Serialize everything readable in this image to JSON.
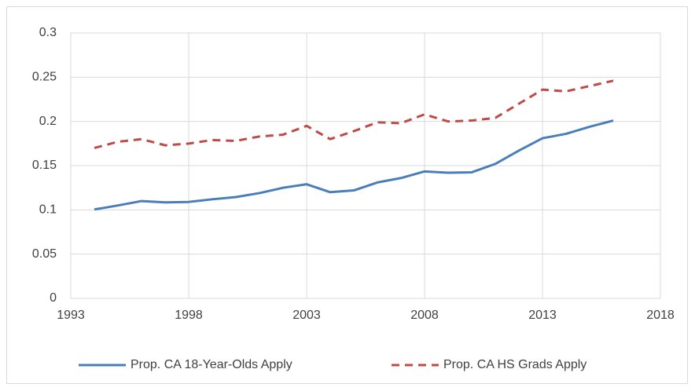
{
  "chart_data": {
    "type": "line",
    "x": [
      1994,
      1995,
      1996,
      1997,
      1998,
      1999,
      2000,
      2001,
      2002,
      2003,
      2004,
      2005,
      2006,
      2007,
      2008,
      2009,
      2010,
      2011,
      2012,
      2013,
      2014,
      2015,
      2016
    ],
    "series": [
      {
        "name": "Prop. CA 18-Year-Olds Apply",
        "color": "#4a7ebb",
        "dashed": false,
        "values": [
          0.1005,
          0.105,
          0.11,
          0.1085,
          0.109,
          0.112,
          0.1145,
          0.119,
          0.125,
          0.129,
          0.12,
          0.122,
          0.131,
          0.136,
          0.1435,
          0.142,
          0.1425,
          0.152,
          0.167,
          0.181,
          0.186,
          0.194,
          0.201
        ]
      },
      {
        "name": "Prop. CA HS Grads Apply",
        "color": "#be4b48",
        "dashed": true,
        "values": [
          0.17,
          0.177,
          0.18,
          0.173,
          0.175,
          0.179,
          0.178,
          0.183,
          0.185,
          0.195,
          0.18,
          0.189,
          0.199,
          0.198,
          0.208,
          0.2,
          0.201,
          0.204,
          0.22,
          0.236,
          0.234,
          0.24,
          0.246
        ]
      }
    ],
    "xlim": [
      1993,
      2018
    ],
    "xticks": [
      1993,
      1998,
      2003,
      2008,
      2013,
      2018
    ],
    "ylim": [
      0,
      0.3
    ],
    "yticks": [
      0,
      0.05,
      0.1,
      0.15,
      0.2,
      0.25,
      0.3
    ],
    "grid": true,
    "legend": "bottom"
  }
}
